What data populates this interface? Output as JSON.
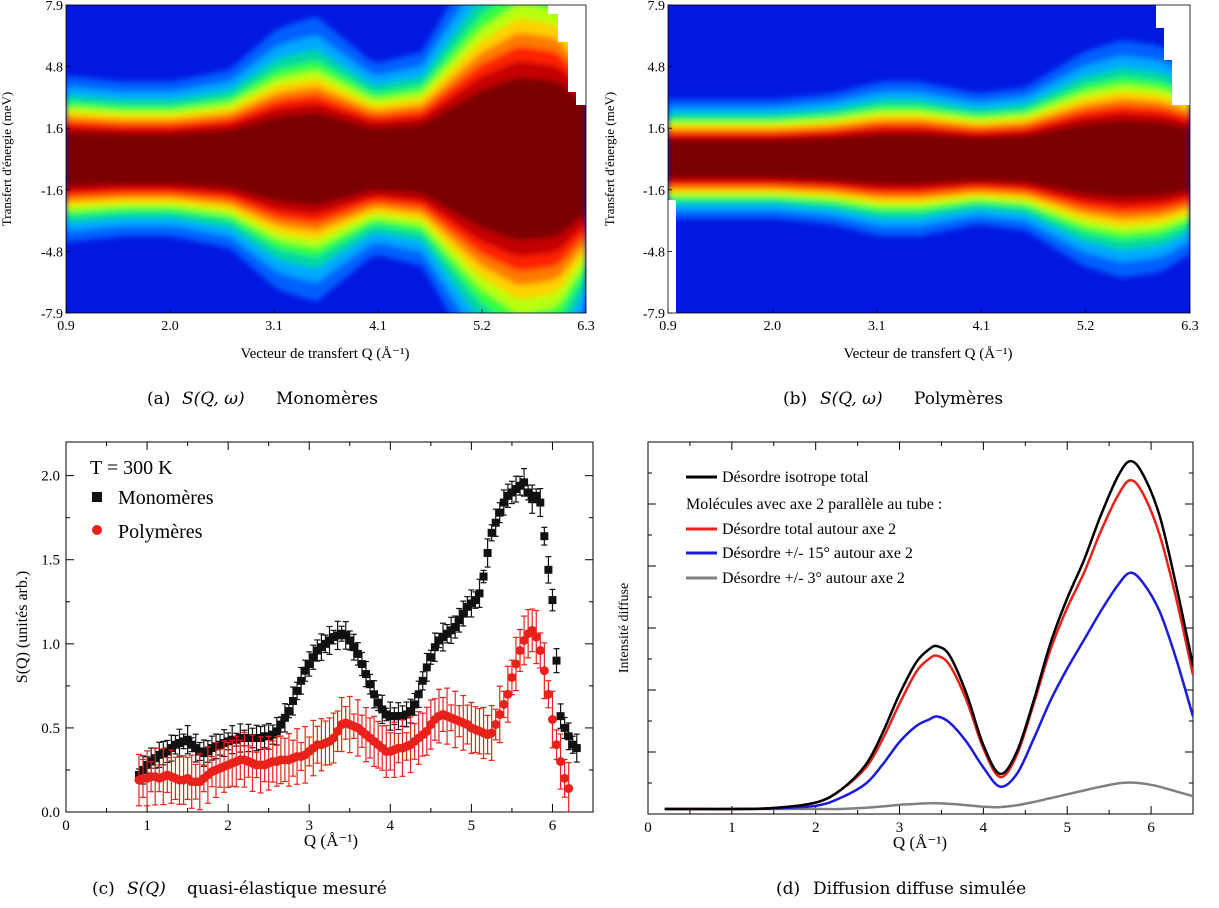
{
  "colors": {
    "monomer": "#111111",
    "polymer": "#e8221a",
    "black_line": "#000000",
    "red_line": "#e8221a",
    "blue_line": "#1a1ae0",
    "gray_line": "#808080"
  },
  "panel_a": {
    "caption_prefix": "(a)",
    "caption_math": "S(Q, ω)",
    "caption_text": "Monomères",
    "ylabel": "Transfert d'énergie (meV)",
    "xlabel": "Vecteur de transfert Q (Å⁻¹)",
    "xticks": [
      "0.9",
      "2.0",
      "3.1",
      "4.1",
      "5.2",
      "6.3"
    ],
    "yticks": [
      "7.9",
      "4.8",
      "1.6",
      "-1.6",
      "-4.8",
      "-7.9"
    ]
  },
  "panel_b": {
    "caption_prefix": "(b)",
    "caption_math": "S(Q, ω)",
    "caption_text": "Polymères",
    "ylabel": "Transfert d'énergie (meV)",
    "xlabel": "Vecteur de transfert Q (Å⁻¹)",
    "xticks": [
      "0.9",
      "2.0",
      "3.1",
      "4.1",
      "5.2",
      "6.3"
    ],
    "yticks": [
      "7.9",
      "4.8",
      "1.6",
      "-1.6",
      "-4.8",
      "-7.9"
    ]
  },
  "panel_c": {
    "caption_prefix": "(c)",
    "caption_math": "S(Q)",
    "caption_text": "quasi-élastique mesuré",
    "ylabel": "S(Q) (unités arb.)",
    "xlabel": "Q (Å⁻¹)",
    "annotation": "T = 300 K",
    "legend": [
      "Monomères",
      "Polymères"
    ],
    "xticks": [
      "0",
      "1",
      "2",
      "3",
      "4",
      "5",
      "6"
    ],
    "yticks": [
      "0.0",
      "0.5",
      "1.0",
      "1.5",
      "2.0"
    ]
  },
  "panel_d": {
    "caption_prefix": "(d)",
    "caption_text": "Diffusion diffuse simulée",
    "ylabel": "Intensité diffuse",
    "xlabel": "Q (Å⁻¹)",
    "legend_header": "Molécules avec axe 2 parallèle au tube :",
    "legend": [
      "Désordre isotrope total",
      "Désordre total autour axe 2",
      "Désordre +/- 15° autour axe 2",
      "Désordre +/- 3° autour axe 2"
    ],
    "xticks": [
      "0",
      "1",
      "2",
      "3",
      "4",
      "5",
      "6"
    ]
  },
  "chart_data": [
    {
      "type": "heatmap",
      "xlabel": "Vecteur de transfert Q (Å⁻¹)",
      "ylabel": "Transfert d'énergie (meV)",
      "xlim": [
        0.9,
        6.3
      ],
      "ylim": [
        -7.9,
        7.9
      ],
      "colormap": "jet",
      "ridge_halfwidth": {
        "x": [
          0.9,
          1.5,
          2.0,
          2.6,
          3.1,
          3.5,
          4.1,
          4.6,
          5.2,
          5.6,
          6.0,
          6.3
        ],
        "halfwidth_meV": [
          1.4,
          1.3,
          1.3,
          1.5,
          2.2,
          2.4,
          1.6,
          1.8,
          3.5,
          4.2,
          4.0,
          2.8
        ]
      }
    },
    {
      "type": "heatmap",
      "xlabel": "Vecteur de transfert Q (Å⁻¹)",
      "ylabel": "Transfert d'énergie (meV)",
      "xlim": [
        0.9,
        6.3
      ],
      "ylim": [
        -7.9,
        7.9
      ],
      "colormap": "jet",
      "ridge_halfwidth": {
        "x": [
          0.9,
          1.5,
          2.0,
          2.6,
          3.1,
          3.5,
          4.1,
          4.6,
          5.2,
          5.6,
          6.0,
          6.3
        ],
        "halfwidth_meV": [
          1.0,
          1.0,
          1.0,
          1.1,
          1.3,
          1.3,
          1.1,
          1.2,
          1.8,
          2.0,
          1.9,
          1.6
        ]
      }
    },
    {
      "type": "scatter",
      "xlabel": "Q (Å⁻¹)",
      "ylabel": "S(Q) (unités arb.)",
      "xlim": [
        0,
        6.5
      ],
      "ylim": [
        0,
        2.2
      ],
      "series": [
        {
          "name": "Monomères",
          "x": [
            0.9,
            0.95,
            1.0,
            1.05,
            1.1,
            1.15,
            1.2,
            1.25,
            1.3,
            1.35,
            1.4,
            1.45,
            1.5,
            1.55,
            1.6,
            1.65,
            1.7,
            1.75,
            1.8,
            1.85,
            1.9,
            1.95,
            2.0,
            2.05,
            2.1,
            2.15,
            2.2,
            2.25,
            2.3,
            2.35,
            2.4,
            2.45,
            2.5,
            2.55,
            2.6,
            2.65,
            2.7,
            2.75,
            2.8,
            2.85,
            2.9,
            2.95,
            3.0,
            3.05,
            3.1,
            3.15,
            3.2,
            3.25,
            3.3,
            3.35,
            3.4,
            3.45,
            3.5,
            3.55,
            3.6,
            3.65,
            3.7,
            3.75,
            3.8,
            3.85,
            3.9,
            3.95,
            4.0,
            4.05,
            4.1,
            4.15,
            4.2,
            4.25,
            4.3,
            4.35,
            4.4,
            4.45,
            4.5,
            4.55,
            4.6,
            4.65,
            4.7,
            4.75,
            4.8,
            4.85,
            4.9,
            4.95,
            5.0,
            5.05,
            5.1,
            5.15,
            5.2,
            5.25,
            5.3,
            5.35,
            5.4,
            5.45,
            5.5,
            5.55,
            5.6,
            5.65,
            5.7,
            5.75,
            5.8,
            5.85,
            5.9,
            5.95,
            6.0,
            6.05,
            6.1,
            6.15,
            6.2,
            6.25,
            6.3
          ],
          "y": [
            0.22,
            0.25,
            0.28,
            0.3,
            0.32,
            0.34,
            0.35,
            0.36,
            0.38,
            0.4,
            0.41,
            0.42,
            0.43,
            0.4,
            0.38,
            0.36,
            0.35,
            0.36,
            0.38,
            0.39,
            0.4,
            0.41,
            0.42,
            0.43,
            0.43,
            0.44,
            0.44,
            0.44,
            0.44,
            0.44,
            0.44,
            0.45,
            0.45,
            0.46,
            0.48,
            0.52,
            0.56,
            0.6,
            0.66,
            0.72,
            0.78,
            0.84,
            0.88,
            0.92,
            0.96,
            0.98,
            1.0,
            1.02,
            1.04,
            1.05,
            1.06,
            1.05,
            1.02,
            0.98,
            0.94,
            0.88,
            0.82,
            0.76,
            0.7,
            0.65,
            0.61,
            0.58,
            0.57,
            0.57,
            0.57,
            0.57,
            0.58,
            0.6,
            0.64,
            0.7,
            0.78,
            0.86,
            0.92,
            0.98,
            1.02,
            1.04,
            1.06,
            1.08,
            1.1,
            1.14,
            1.18,
            1.22,
            1.24,
            1.26,
            1.3,
            1.4,
            1.54,
            1.66,
            1.72,
            1.78,
            1.84,
            1.88,
            1.9,
            1.92,
            1.94,
            1.96,
            1.9,
            1.86,
            1.88,
            1.84,
            1.64,
            1.44,
            1.26,
            0.9,
            0.57,
            0.5,
            0.45,
            0.4,
            0.38
          ],
          "yerr": 0.06
        },
        {
          "name": "Polymères",
          "x": [
            0.9,
            0.95,
            1.0,
            1.05,
            1.1,
            1.15,
            1.2,
            1.25,
            1.3,
            1.35,
            1.4,
            1.45,
            1.5,
            1.55,
            1.6,
            1.65,
            1.7,
            1.75,
            1.8,
            1.85,
            1.9,
            1.95,
            2.0,
            2.05,
            2.1,
            2.15,
            2.2,
            2.25,
            2.3,
            2.35,
            2.4,
            2.45,
            2.5,
            2.55,
            2.6,
            2.65,
            2.7,
            2.75,
            2.8,
            2.85,
            2.9,
            2.95,
            3.0,
            3.05,
            3.1,
            3.15,
            3.2,
            3.25,
            3.3,
            3.35,
            3.4,
            3.45,
            3.5,
            3.55,
            3.6,
            3.65,
            3.7,
            3.75,
            3.8,
            3.85,
            3.9,
            3.95,
            4.0,
            4.05,
            4.1,
            4.15,
            4.2,
            4.25,
            4.3,
            4.35,
            4.4,
            4.45,
            4.5,
            4.55,
            4.6,
            4.65,
            4.7,
            4.75,
            4.8,
            4.85,
            4.9,
            4.95,
            5.0,
            5.05,
            5.1,
            5.15,
            5.2,
            5.25,
            5.3,
            5.35,
            5.4,
            5.45,
            5.5,
            5.55,
            5.6,
            5.65,
            5.7,
            5.75,
            5.8,
            5.85,
            5.9,
            5.95,
            6.0,
            6.05,
            6.1,
            6.15,
            6.2
          ],
          "y": [
            0.19,
            0.2,
            0.2,
            0.21,
            0.21,
            0.2,
            0.21,
            0.22,
            0.21,
            0.2,
            0.19,
            0.19,
            0.2,
            0.18,
            0.18,
            0.18,
            0.2,
            0.22,
            0.24,
            0.25,
            0.26,
            0.27,
            0.28,
            0.29,
            0.3,
            0.31,
            0.31,
            0.3,
            0.29,
            0.28,
            0.28,
            0.28,
            0.29,
            0.3,
            0.3,
            0.31,
            0.31,
            0.31,
            0.32,
            0.33,
            0.33,
            0.34,
            0.36,
            0.38,
            0.4,
            0.4,
            0.41,
            0.42,
            0.44,
            0.48,
            0.52,
            0.53,
            0.52,
            0.51,
            0.5,
            0.48,
            0.46,
            0.44,
            0.42,
            0.4,
            0.38,
            0.36,
            0.36,
            0.37,
            0.38,
            0.38,
            0.39,
            0.4,
            0.42,
            0.44,
            0.46,
            0.48,
            0.52,
            0.55,
            0.57,
            0.58,
            0.57,
            0.56,
            0.55,
            0.54,
            0.53,
            0.52,
            0.5,
            0.49,
            0.48,
            0.47,
            0.46,
            0.47,
            0.52,
            0.58,
            0.64,
            0.7,
            0.8,
            0.88,
            0.96,
            1.02,
            1.06,
            1.08,
            1.04,
            0.96,
            0.84,
            0.7,
            0.55,
            0.4,
            0.3,
            0.2,
            0.14
          ],
          "yerr": 0.12
        }
      ]
    },
    {
      "type": "line",
      "xlabel": "Q (Å⁻¹)",
      "ylabel": "Intensité diffuse",
      "xlim": [
        0,
        6.5
      ],
      "x": [
        0.2,
        0.5,
        1.0,
        1.5,
        2.0,
        2.3,
        2.6,
        2.8,
        3.0,
        3.2,
        3.35,
        3.45,
        3.6,
        3.8,
        4.0,
        4.2,
        4.4,
        4.6,
        4.8,
        5.0,
        5.2,
        5.4,
        5.6,
        5.75,
        5.9,
        6.1,
        6.3,
        6.5
      ],
      "series": [
        {
          "name": "Désordre isotrope total",
          "values": [
            0,
            0,
            0,
            0.003,
            0.02,
            0.06,
            0.14,
            0.24,
            0.36,
            0.46,
            0.5,
            0.51,
            0.48,
            0.36,
            0.2,
            0.11,
            0.18,
            0.34,
            0.52,
            0.66,
            0.78,
            0.92,
            1.04,
            1.09,
            1.05,
            0.92,
            0.7,
            0.45
          ]
        },
        {
          "name": "Désordre total autour axe 2",
          "values": [
            0,
            0,
            0,
            0.003,
            0.02,
            0.06,
            0.13,
            0.22,
            0.33,
            0.43,
            0.47,
            0.48,
            0.45,
            0.34,
            0.19,
            0.1,
            0.17,
            0.33,
            0.5,
            0.63,
            0.74,
            0.87,
            0.98,
            1.03,
            0.99,
            0.86,
            0.66,
            0.42
          ]
        },
        {
          "name": "Désordre +/- 15° autour axe 2",
          "values": [
            0,
            0,
            0,
            0.002,
            0.01,
            0.035,
            0.08,
            0.14,
            0.21,
            0.26,
            0.28,
            0.29,
            0.27,
            0.21,
            0.13,
            0.07,
            0.11,
            0.22,
            0.34,
            0.44,
            0.53,
            0.62,
            0.7,
            0.74,
            0.71,
            0.62,
            0.47,
            0.29
          ]
        },
        {
          "name": "Désordre +/- 3° autour axe 2",
          "values": [
            0,
            0,
            0,
            0,
            0,
            0,
            0.004,
            0.008,
            0.013,
            0.016,
            0.018,
            0.018,
            0.016,
            0.012,
            0.007,
            0.006,
            0.012,
            0.022,
            0.034,
            0.046,
            0.058,
            0.07,
            0.08,
            0.083,
            0.08,
            0.07,
            0.055,
            0.04
          ]
        }
      ]
    }
  ]
}
